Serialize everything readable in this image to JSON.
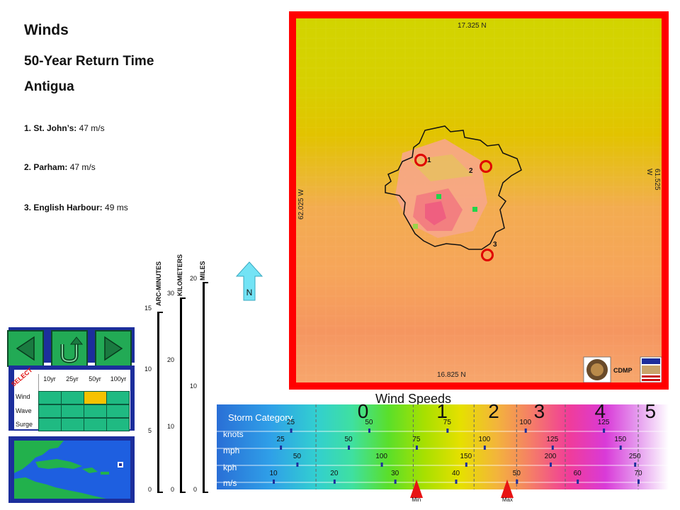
{
  "header": {
    "title": "Winds",
    "subtitle": "50-Year Return Time",
    "location": "Antigua"
  },
  "sites": [
    {
      "name": "1. St. John’s:",
      "value": "47 m/s"
    },
    {
      "name": "2. Parham:",
      "value": "47 m/s"
    },
    {
      "name": "3. English Harbour:",
      "value": "49 ms"
    }
  ],
  "scales": {
    "arc_minutes": {
      "label": "ARC-MINUTES",
      "ticks": [
        "0",
        "5",
        "10",
        "15"
      ]
    },
    "kilometers": {
      "label": "KILOMETERS",
      "ticks": [
        "0",
        "10",
        "20",
        "30"
      ]
    },
    "miles": {
      "label": "MILES",
      "ticks": [
        "0",
        "10",
        "20"
      ]
    }
  },
  "north_arrow": {
    "label": "N"
  },
  "nav": {
    "back_icon": "left-arrow-icon",
    "home_icon": "u-turn-icon",
    "forward_icon": "right-arrow-icon"
  },
  "selector": {
    "tag": "SELECT",
    "columns": [
      "10yr",
      "25yr",
      "50yr",
      "100yr"
    ],
    "rows": [
      "Wind",
      "Wave",
      "Surge"
    ],
    "selected": {
      "row": 0,
      "col": 2
    },
    "cell_color": "#1fba82",
    "selected_color": "#f6c200"
  },
  "map": {
    "north_label": "17.325 N",
    "south_label": "16.825 N",
    "west_label": "62.025 W",
    "east_label": "61.525 W",
    "site_markers": [
      "1",
      "2",
      "3"
    ],
    "credit": "CDMP",
    "logos": [
      "oas-seal-logo",
      "usaid-logo"
    ]
  },
  "legend": {
    "title": "Wind Speeds",
    "category_label": "Storm Category",
    "categories": [
      "0",
      "1",
      "2",
      "3",
      "4",
      "5"
    ],
    "rows": [
      {
        "unit": "knots",
        "ticks": [
          "25",
          "50",
          "75",
          "100",
          "125"
        ]
      },
      {
        "unit": "mph",
        "ticks": [
          "25",
          "50",
          "75",
          "100",
          "125",
          "150"
        ]
      },
      {
        "unit": "kph",
        "ticks": [
          "50",
          "100",
          "150",
          "200",
          "250"
        ]
      },
      {
        "unit": "m/s",
        "ticks": [
          "10",
          "20",
          "30",
          "40",
          "50",
          "60",
          "70"
        ]
      }
    ],
    "min_label": "Min",
    "max_label": "Max",
    "min_value_ms": 33.5,
    "max_value_ms": 48.5
  }
}
